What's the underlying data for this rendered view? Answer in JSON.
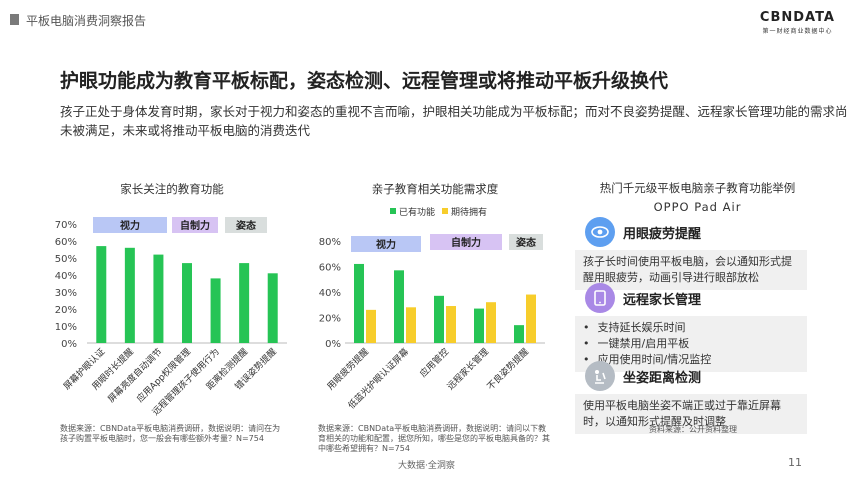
{
  "header": {
    "report_title": "平板电脑消费洞察报告",
    "logo_main": "CBNDATA",
    "logo_sub": "第一财经商业数据中心"
  },
  "headline": "护眼功能成为教育平板标配，姿态检测、远程管理或将推动平板升级换代",
  "intro": "孩子正处于身体发育时期，家长对于视力和姿态的重视不言而喻，护眼相关功能成为平板标配；而对不良姿势提醒、远程家长管理功能的需求尚未被满足，未来或将推动平板电脑的消费迭代",
  "chart_data": [
    {
      "type": "bar",
      "title": "家长关注的教育功能",
      "groups": [
        "视力",
        "自制力",
        "姿态"
      ],
      "categories": [
        "屏幕护眼认证",
        "用眼时长提醒",
        "屏幕亮度自动调节",
        "应用App权限管理",
        "远程管理孩子使用行为",
        "距离检测提醒",
        "错误姿势提醒"
      ],
      "values": [
        57,
        56,
        52,
        47,
        38,
        47,
        41
      ],
      "ylim": [
        0,
        70
      ],
      "yticks": [
        "0%",
        "10%",
        "20%",
        "30%",
        "40%",
        "50%",
        "60%",
        "70%"
      ],
      "colors": {
        "bar": "#26c455"
      },
      "source": "数据来源：CBNData平板电脑消费调研，数据说明：请问在为孩子购置平板电脑时，您一般会有哪些额外考量？N=754"
    },
    {
      "type": "bar",
      "title": "亲子教育相关功能需求度",
      "groups": [
        "视力",
        "自制力",
        "姿态"
      ],
      "categories": [
        "用眼疲劳提醒",
        "低蓝光护眼认证屏幕",
        "应用管控",
        "远程家长管理",
        "不良姿势提醒"
      ],
      "series": [
        {
          "name": "已有功能",
          "values": [
            62,
            57,
            37,
            27,
            14
          ],
          "color": "#26c455"
        },
        {
          "name": "期待拥有",
          "values": [
            26,
            28,
            29,
            32,
            38
          ],
          "color": "#f7cd2b"
        }
      ],
      "ylim": [
        0,
        80
      ],
      "yticks": [
        "0%",
        "20%",
        "40%",
        "60%",
        "80%"
      ],
      "source": "数据来源：CBNData平板电脑消费调研，数据说明：请问以下教育相关的功能和配置，据您所知，哪些是您的平板电脑具备的？其中哪些希望拥有？N=754"
    }
  ],
  "group_colors": {
    "视力": "#b9c7f5",
    "自制力": "#d7c3f3",
    "姿态": "#d9dedd"
  },
  "right_panel": {
    "title": "热门千元级平板电脑亲子教育功能举例",
    "subtitle": "OPPO Pad Air",
    "features": [
      {
        "title": "用眼疲劳提醒",
        "icon": "eye-icon",
        "color": "#5e9ff0",
        "text": "孩子长时间使用平板电脑，会以通知形式提醒用眼疲劳，动画引导进行眼部放松"
      },
      {
        "title": "远程家长管理",
        "icon": "tablet-icon",
        "color": "#a989e6",
        "bullets": [
          "支持延长娱乐时间",
          "一键禁用/启用平板",
          "应用使用时间/情况监控"
        ]
      },
      {
        "title": "坐姿距离检测",
        "icon": "posture-icon",
        "color": "#b5bcc4",
        "text": "使用平板电脑坐姿不端正或过于靠近屏幕时，以通知形式提醒及时调整"
      }
    ],
    "source": "资料来源：公开资料整理"
  },
  "footer": "大数据·全洞察",
  "page_number": "11"
}
